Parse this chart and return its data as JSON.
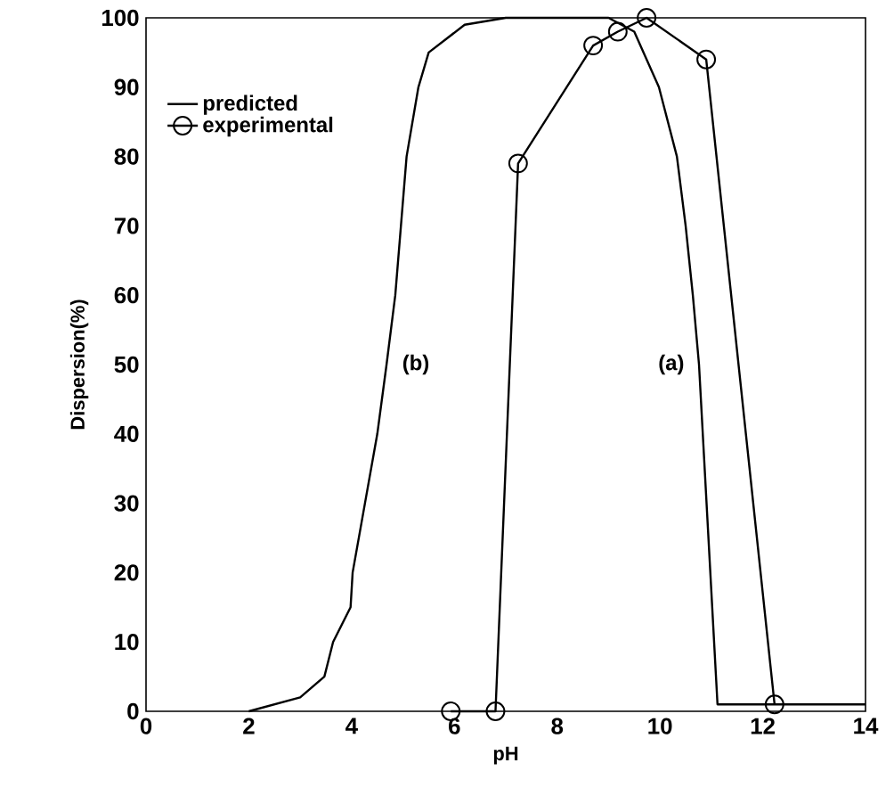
{
  "chart_data": {
    "type": "line",
    "xlabel": "pH",
    "ylabel": "Dispersion(%)",
    "xlim": [
      0,
      14
    ],
    "ylim": [
      0,
      100
    ],
    "xticks": [
      0,
      2,
      4,
      6,
      8,
      10,
      12,
      14
    ],
    "yticks": [
      0,
      10,
      20,
      30,
      40,
      50,
      60,
      70,
      80,
      90,
      100
    ],
    "grid": false,
    "legend": "top left",
    "series": [
      {
        "name": "predicted",
        "color": "#000000",
        "marker": "none",
        "x": [
          2.0,
          2.5,
          3.0,
          3.47,
          3.64,
          3.98,
          4.02,
          4.26,
          4.5,
          4.68,
          4.85,
          5.07,
          5.3,
          5.5,
          6.2,
          7.0,
          8.0,
          9.0,
          9.5,
          9.98,
          10.33,
          10.5,
          10.64,
          10.76,
          11.12,
          14
        ],
        "values": [
          0,
          1,
          2,
          5,
          10,
          15,
          20,
          30,
          40,
          50,
          60,
          80,
          90,
          95,
          99,
          100,
          100,
          100,
          98,
          90,
          80,
          70,
          60,
          50,
          1,
          1
        ]
      },
      {
        "name": "experimental",
        "color": "#000000",
        "marker": "circle",
        "x": [
          5.93,
          6.8,
          7.24,
          8.7,
          9.18,
          9.74,
          10.9,
          12.23
        ],
        "values": [
          0,
          0,
          79,
          96,
          98,
          100,
          94,
          1
        ]
      }
    ],
    "annotations": [
      "(b)",
      "(a)"
    ]
  }
}
